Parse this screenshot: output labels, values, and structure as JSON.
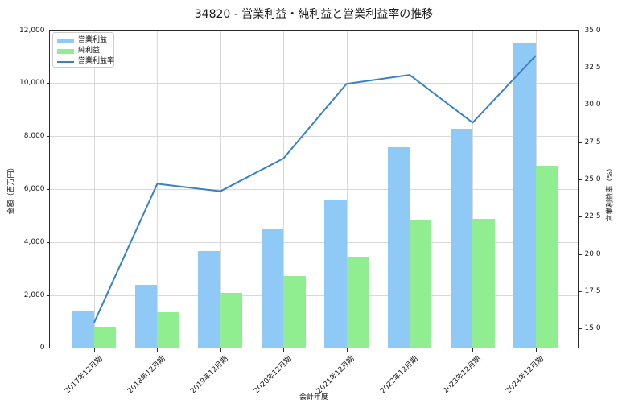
{
  "chart_data": {
    "type": "bar+line",
    "title": "34820 - 営業利益・純利益と営業利益率の推移",
    "xlabel": "会計年度",
    "ylabel_left": "金額（百万円）",
    "ylabel_right": "営業利益率（%）",
    "categories": [
      "2017年12月期",
      "2018年12月期",
      "2019年12月期",
      "2020年12月期",
      "2021年12月期",
      "2022年12月期",
      "2023年12月期",
      "2024年12月期"
    ],
    "bar_series": [
      {
        "name": "営業利益",
        "color": "#8FC9F5",
        "values": [
          1370,
          2390,
          3660,
          4480,
          5610,
          7570,
          8270,
          11490
        ]
      },
      {
        "name": "純利益",
        "color": "#90EE90",
        "values": [
          790,
          1350,
          2080,
          2710,
          3440,
          4840,
          4870,
          6880
        ]
      }
    ],
    "line_series": {
      "name": "営業利益率",
      "color": "#3782C4",
      "values": [
        15.4,
        24.7,
        24.2,
        26.4,
        31.4,
        32.0,
        28.8,
        33.3
      ]
    },
    "left_axis": {
      "min": 0,
      "max": 12000,
      "ticks": [
        0,
        2000,
        4000,
        6000,
        8000,
        10000,
        12000
      ],
      "tick_labels": [
        "0",
        "2,000",
        "4,000",
        "6,000",
        "8,000",
        "10,000",
        "12,000"
      ]
    },
    "right_axis": {
      "min": 13.7,
      "max": 35.0,
      "ticks": [
        15.0,
        17.5,
        20.0,
        22.5,
        25.0,
        27.5,
        30.0,
        32.5,
        35.0
      ],
      "tick_labels": [
        "15.0",
        "17.5",
        "20.0",
        "22.5",
        "25.0",
        "27.5",
        "30.0",
        "32.5",
        "35.0"
      ]
    },
    "grid": true,
    "legend_position": "upper-left",
    "colors": {
      "spine": "#2a2a2a",
      "grid": "#d8d8d8",
      "text": "#191919"
    }
  }
}
